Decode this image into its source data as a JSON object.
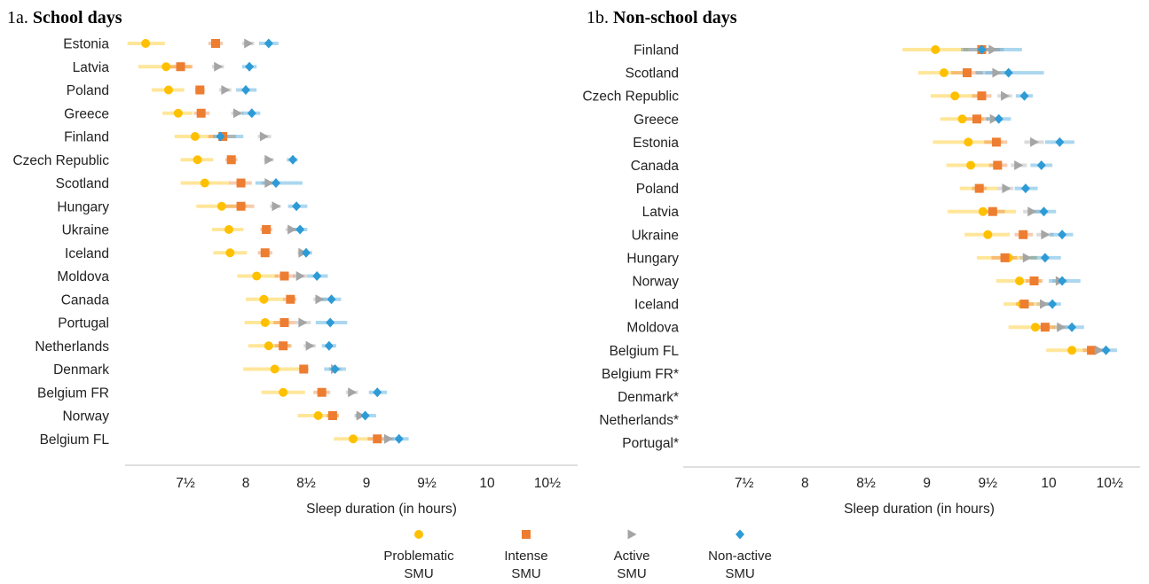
{
  "legend": [
    {
      "key": "problematic",
      "label_lines": [
        "Problematic",
        "SMU"
      ],
      "color": "#FFC000",
      "shape": "circle"
    },
    {
      "key": "intense",
      "label_lines": [
        "Intense",
        "SMU"
      ],
      "color": "#ED7D31",
      "shape": "square"
    },
    {
      "key": "active",
      "label_lines": [
        "Active",
        "SMU"
      ],
      "color": "#A5A5A5",
      "shape": "triangle"
    },
    {
      "key": "nonactive",
      "label_lines": [
        "Non-active",
        "SMU"
      ],
      "color": "#2E9BD6",
      "shape": "diamond"
    }
  ],
  "chart_data": [
    {
      "type": "scatter",
      "id": "1a",
      "title_prefix": "1a.",
      "title": "School days",
      "xlabel": "Sleep duration (in hours)",
      "xlim": [
        7.0,
        10.75
      ],
      "xticks": [
        7.5,
        8,
        8.5,
        9,
        9.5,
        10,
        10.5
      ],
      "xtick_labels": [
        "7½",
        "8",
        "8½",
        "9",
        "9½",
        "10",
        "10½"
      ],
      "series_order": [
        "problematic",
        "intense",
        "active",
        "nonactive"
      ],
      "rows": [
        {
          "country": "Estonia",
          "values": [
            7.17,
            7.75,
            8.02,
            8.19
          ],
          "ci": [
            [
              7.02,
              7.33
            ],
            [
              7.69,
              7.81
            ],
            [
              7.97,
              8.07
            ],
            [
              8.11,
              8.27
            ]
          ]
        },
        {
          "country": "Latvia",
          "values": [
            7.34,
            7.46,
            7.77,
            8.03
          ],
          "ci": [
            [
              7.11,
              7.55
            ],
            [
              7.34,
              7.56
            ],
            [
              7.72,
              7.82
            ],
            [
              7.97,
              8.09
            ]
          ]
        },
        {
          "country": "Poland",
          "values": [
            7.36,
            7.62,
            7.83,
            8.0
          ],
          "ci": [
            [
              7.22,
              7.49
            ],
            [
              7.58,
              7.66
            ],
            [
              7.78,
              7.88
            ],
            [
              7.92,
              8.09
            ]
          ]
        },
        {
          "country": "Greece",
          "values": [
            7.44,
            7.63,
            7.93,
            8.05
          ],
          "ci": [
            [
              7.31,
              7.56
            ],
            [
              7.57,
              7.7
            ],
            [
              7.88,
              7.98
            ],
            [
              7.97,
              8.12
            ]
          ]
        },
        {
          "country": "Finland",
          "values": [
            7.58,
            7.81,
            8.15,
            7.79
          ],
          "ci": [
            [
              7.41,
              7.74
            ],
            [
              7.69,
              7.92
            ],
            [
              8.1,
              8.21
            ],
            [
              7.73,
              7.98
            ]
          ]
        },
        {
          "country": "Czech Republic",
          "values": [
            7.6,
            7.88,
            8.19,
            8.39
          ],
          "ci": [
            [
              7.46,
              7.73
            ],
            [
              7.83,
              7.93
            ],
            [
              8.15,
              8.23
            ],
            [
              8.34,
              8.43
            ]
          ]
        },
        {
          "country": "Scotland",
          "values": [
            7.66,
            7.96,
            8.19,
            8.25
          ],
          "ci": [
            [
              7.46,
              7.86
            ],
            [
              7.86,
              8.05
            ],
            [
              8.13,
              8.25
            ],
            [
              8.08,
              8.47
            ]
          ]
        },
        {
          "country": "Hungary",
          "values": [
            7.8,
            7.96,
            8.25,
            8.42
          ],
          "ci": [
            [
              7.59,
              8.01
            ],
            [
              7.82,
              8.07
            ],
            [
              8.2,
              8.29
            ],
            [
              8.35,
              8.51
            ]
          ]
        },
        {
          "country": "Ukraine",
          "values": [
            7.86,
            8.17,
            8.38,
            8.45
          ],
          "ci": [
            [
              7.72,
              7.98
            ],
            [
              8.12,
              8.22
            ],
            [
              8.33,
              8.43
            ],
            [
              8.38,
              8.51
            ]
          ]
        },
        {
          "country": "Iceland",
          "values": [
            7.87,
            8.16,
            8.47,
            8.5
          ],
          "ci": [
            [
              7.73,
              8.01
            ],
            [
              8.1,
              8.22
            ],
            [
              8.43,
              8.52
            ],
            [
              8.45,
              8.55
            ]
          ]
        },
        {
          "country": "Moldova",
          "values": [
            8.09,
            8.32,
            8.45,
            8.59
          ],
          "ci": [
            [
              7.93,
              8.27
            ],
            [
              8.24,
              8.41
            ],
            [
              8.39,
              8.51
            ],
            [
              8.51,
              8.68
            ]
          ]
        },
        {
          "country": "Canada",
          "values": [
            8.15,
            8.37,
            8.61,
            8.71
          ],
          "ci": [
            [
              8.0,
              8.32
            ],
            [
              8.31,
              8.42
            ],
            [
              8.56,
              8.67
            ],
            [
              8.63,
              8.79
            ]
          ]
        },
        {
          "country": "Portugal",
          "values": [
            8.16,
            8.32,
            8.47,
            8.7
          ],
          "ci": [
            [
              7.99,
              8.32
            ],
            [
              8.23,
              8.41
            ],
            [
              8.41,
              8.54
            ],
            [
              8.58,
              8.84
            ]
          ]
        },
        {
          "country": "Netherlands",
          "values": [
            8.19,
            8.31,
            8.53,
            8.69
          ],
          "ci": [
            [
              8.02,
              8.37
            ],
            [
              8.24,
              8.38
            ],
            [
              8.48,
              8.58
            ],
            [
              8.63,
              8.75
            ]
          ]
        },
        {
          "country": "Denmark",
          "values": [
            8.24,
            8.48,
            8.74,
            8.74
          ],
          "ci": [
            [
              7.98,
              8.48
            ],
            [
              8.44,
              8.52
            ],
            [
              8.69,
              8.79
            ],
            [
              8.65,
              8.83
            ]
          ]
        },
        {
          "country": "Belgium FR",
          "values": [
            8.31,
            8.63,
            8.88,
            9.09
          ],
          "ci": [
            [
              8.13,
              8.49
            ],
            [
              8.56,
              8.7
            ],
            [
              8.83,
              8.93
            ],
            [
              9.02,
              9.17
            ]
          ]
        },
        {
          "country": "Norway",
          "values": [
            8.6,
            8.72,
            8.95,
            8.99
          ],
          "ci": [
            [
              8.43,
              8.77
            ],
            [
              8.67,
              8.77
            ],
            [
              8.9,
              9.0
            ],
            [
              8.91,
              9.08
            ]
          ]
        },
        {
          "country": "Belgium FL",
          "values": [
            8.89,
            9.09,
            9.18,
            9.27
          ],
          "ci": [
            [
              8.73,
              9.05
            ],
            [
              9.01,
              9.17
            ],
            [
              9.13,
              9.23
            ],
            [
              9.2,
              9.35
            ]
          ]
        }
      ]
    },
    {
      "type": "scatter",
      "id": "1b",
      "title_prefix": "1b.",
      "title": "Non-school days",
      "xlabel": "Sleep duration (in hours)",
      "xlim": [
        7.0,
        10.75
      ],
      "xticks": [
        7.5,
        8,
        8.5,
        9,
        9.5,
        10,
        10.5
      ],
      "xtick_labels": [
        "7½",
        "8",
        "8½",
        "9",
        "9½",
        "10",
        "10½"
      ],
      "series_order": [
        "problematic",
        "intense",
        "active",
        "nonactive"
      ],
      "rows": [
        {
          "country": "Finland",
          "values": [
            9.07,
            9.45,
            9.54,
            9.45
          ],
          "ci": [
            [
              8.8,
              9.34
            ],
            [
              9.3,
              9.6
            ],
            [
              9.45,
              9.63
            ],
            [
              9.28,
              9.78
            ]
          ]
        },
        {
          "country": "Scotland",
          "values": [
            9.14,
            9.33,
            9.57,
            9.67
          ],
          "ci": [
            [
              8.93,
              9.35
            ],
            [
              9.2,
              9.46
            ],
            [
              9.48,
              9.66
            ],
            [
              9.4,
              9.96
            ]
          ]
        },
        {
          "country": "Czech Republic",
          "values": [
            9.23,
            9.45,
            9.64,
            9.8
          ],
          "ci": [
            [
              9.03,
              9.43
            ],
            [
              9.37,
              9.53
            ],
            [
              9.58,
              9.7
            ],
            [
              9.73,
              9.87
            ]
          ]
        },
        {
          "country": "Greece",
          "values": [
            9.29,
            9.41,
            9.55,
            9.59
          ],
          "ci": [
            [
              9.11,
              9.47
            ],
            [
              9.32,
              9.5
            ],
            [
              9.48,
              9.62
            ],
            [
              9.49,
              9.69
            ]
          ]
        },
        {
          "country": "Estonia",
          "values": [
            9.34,
            9.57,
            9.88,
            10.09
          ],
          "ci": [
            [
              9.05,
              9.62
            ],
            [
              9.47,
              9.66
            ],
            [
              9.8,
              9.96
            ],
            [
              9.97,
              10.21
            ]
          ]
        },
        {
          "country": "Canada",
          "values": [
            9.36,
            9.58,
            9.75,
            9.94
          ],
          "ci": [
            [
              9.16,
              9.56
            ],
            [
              9.51,
              9.66
            ],
            [
              9.69,
              9.82
            ],
            [
              9.85,
              10.03
            ]
          ]
        },
        {
          "country": "Poland",
          "values": [
            9.43,
            9.43,
            9.65,
            9.81
          ],
          "ci": [
            [
              9.27,
              9.58
            ],
            [
              9.37,
              9.49
            ],
            [
              9.58,
              9.71
            ],
            [
              9.72,
              9.91
            ]
          ]
        },
        {
          "country": "Latvia",
          "values": [
            9.46,
            9.54,
            9.86,
            9.96
          ],
          "ci": [
            [
              9.17,
              9.73
            ],
            [
              9.44,
              9.64
            ],
            [
              9.79,
              9.93
            ],
            [
              9.85,
              10.06
            ]
          ]
        },
        {
          "country": "Ukraine",
          "values": [
            9.5,
            9.79,
            9.97,
            10.11
          ],
          "ci": [
            [
              9.31,
              9.68
            ],
            [
              9.72,
              9.87
            ],
            [
              9.9,
              10.04
            ],
            [
              10.01,
              10.2
            ]
          ]
        },
        {
          "country": "Hungary",
          "values": [
            9.67,
            9.64,
            9.82,
            9.97
          ],
          "ci": [
            [
              9.41,
              9.91
            ],
            [
              9.53,
              9.74
            ],
            [
              9.76,
              9.9
            ],
            [
              9.85,
              10.1
            ]
          ]
        },
        {
          "country": "Norway",
          "values": [
            9.76,
            9.88,
            10.09,
            10.11
          ],
          "ci": [
            [
              9.57,
              9.94
            ],
            [
              9.81,
              9.95
            ],
            [
              10.03,
              10.15
            ],
            [
              10.0,
              10.26
            ]
          ]
        },
        {
          "country": "Iceland",
          "values": [
            9.78,
            9.8,
            9.96,
            10.03
          ],
          "ci": [
            [
              9.63,
              9.93
            ],
            [
              9.73,
              9.88
            ],
            [
              9.9,
              10.03
            ],
            [
              9.96,
              10.1
            ]
          ]
        },
        {
          "country": "Moldova",
          "values": [
            9.89,
            9.97,
            10.1,
            10.19
          ],
          "ci": [
            [
              9.67,
              10.12
            ],
            [
              9.88,
              10.05
            ],
            [
              10.04,
              10.16
            ],
            [
              10.1,
              10.29
            ]
          ]
        },
        {
          "country": "Belgium FL",
          "values": [
            10.19,
            10.35,
            10.41,
            10.47
          ],
          "ci": [
            [
              9.98,
              10.38
            ],
            [
              10.28,
              10.43
            ],
            [
              10.35,
              10.47
            ],
            [
              10.41,
              10.56
            ]
          ]
        },
        {
          "country": "Belgium FR*",
          "values": [],
          "ci": []
        },
        {
          "country": "Denmark*",
          "values": [],
          "ci": []
        },
        {
          "country": "Netherlands*",
          "values": [],
          "ci": []
        },
        {
          "country": "Portugal*",
          "values": [],
          "ci": []
        }
      ]
    }
  ]
}
